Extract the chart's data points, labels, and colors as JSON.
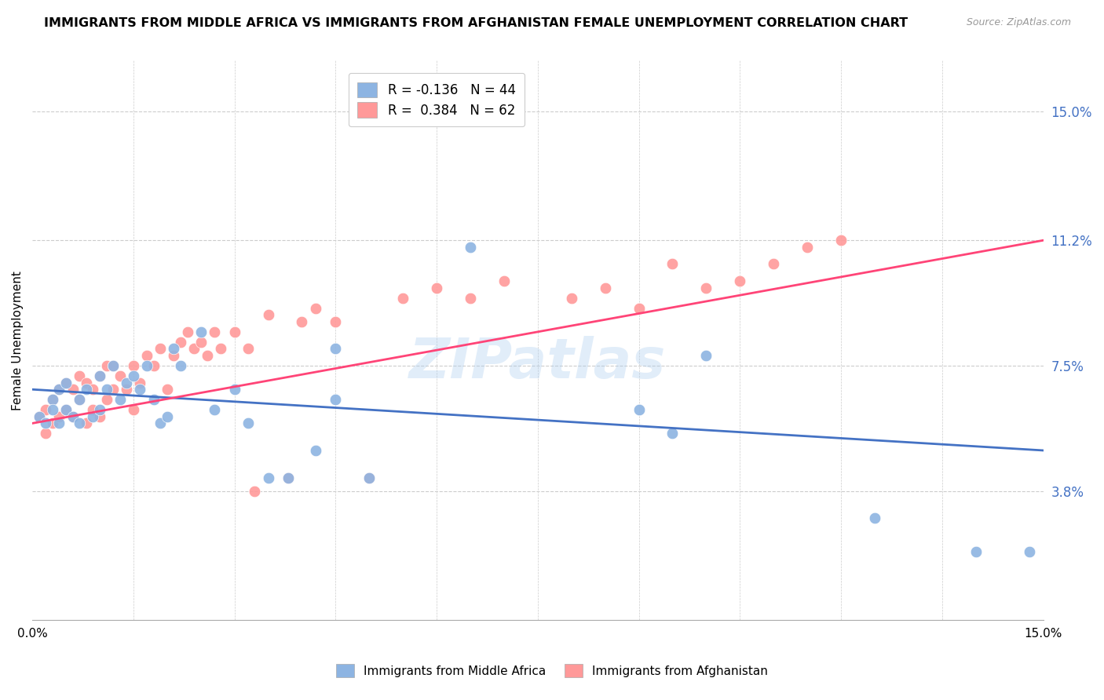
{
  "title": "IMMIGRANTS FROM MIDDLE AFRICA VS IMMIGRANTS FROM AFGHANISTAN FEMALE UNEMPLOYMENT CORRELATION CHART",
  "source": "Source: ZipAtlas.com",
  "ylabel": "Female Unemployment",
  "xlim": [
    0.0,
    0.15
  ],
  "ylim": [
    0.0,
    0.165
  ],
  "yticks": [
    0.038,
    0.075,
    0.112,
    0.15
  ],
  "ytick_labels": [
    "3.8%",
    "7.5%",
    "11.2%",
    "15.0%"
  ],
  "legend_r1": "R = -0.136",
  "legend_n1": "N = 44",
  "legend_r2": "R =  0.384",
  "legend_n2": "N = 62",
  "color_blue": "#8DB4E2",
  "color_pink": "#FF9999",
  "color_blue_line": "#4472C4",
  "color_pink_line": "#FF4477",
  "color_tick_right": "#4472C4",
  "watermark": "ZIPatlas",
  "blue_scatter_x": [
    0.001,
    0.002,
    0.003,
    0.003,
    0.004,
    0.004,
    0.005,
    0.005,
    0.006,
    0.007,
    0.007,
    0.008,
    0.009,
    0.01,
    0.01,
    0.011,
    0.012,
    0.013,
    0.014,
    0.015,
    0.016,
    0.017,
    0.018,
    0.019,
    0.02,
    0.021,
    0.022,
    0.025,
    0.027,
    0.03,
    0.032,
    0.035,
    0.038,
    0.042,
    0.045,
    0.05,
    0.045,
    0.065,
    0.09,
    0.095,
    0.1,
    0.125,
    0.14,
    0.148
  ],
  "blue_scatter_y": [
    0.06,
    0.058,
    0.065,
    0.062,
    0.068,
    0.058,
    0.062,
    0.07,
    0.06,
    0.065,
    0.058,
    0.068,
    0.06,
    0.072,
    0.062,
    0.068,
    0.075,
    0.065,
    0.07,
    0.072,
    0.068,
    0.075,
    0.065,
    0.058,
    0.06,
    0.08,
    0.075,
    0.085,
    0.062,
    0.068,
    0.058,
    0.042,
    0.042,
    0.05,
    0.065,
    0.042,
    0.08,
    0.11,
    0.062,
    0.055,
    0.078,
    0.03,
    0.02,
    0.02
  ],
  "pink_scatter_x": [
    0.001,
    0.002,
    0.002,
    0.003,
    0.003,
    0.004,
    0.004,
    0.005,
    0.005,
    0.006,
    0.006,
    0.007,
    0.007,
    0.008,
    0.008,
    0.009,
    0.009,
    0.01,
    0.01,
    0.011,
    0.011,
    0.012,
    0.012,
    0.013,
    0.014,
    0.015,
    0.015,
    0.016,
    0.017,
    0.018,
    0.019,
    0.02,
    0.021,
    0.022,
    0.023,
    0.024,
    0.025,
    0.026,
    0.027,
    0.028,
    0.03,
    0.032,
    0.033,
    0.035,
    0.038,
    0.04,
    0.042,
    0.045,
    0.05,
    0.055,
    0.06,
    0.065,
    0.07,
    0.08,
    0.085,
    0.09,
    0.095,
    0.1,
    0.105,
    0.11,
    0.115,
    0.12
  ],
  "pink_scatter_y": [
    0.06,
    0.055,
    0.062,
    0.058,
    0.065,
    0.06,
    0.068,
    0.062,
    0.07,
    0.06,
    0.068,
    0.065,
    0.072,
    0.058,
    0.07,
    0.062,
    0.068,
    0.06,
    0.072,
    0.065,
    0.075,
    0.068,
    0.075,
    0.072,
    0.068,
    0.062,
    0.075,
    0.07,
    0.078,
    0.075,
    0.08,
    0.068,
    0.078,
    0.082,
    0.085,
    0.08,
    0.082,
    0.078,
    0.085,
    0.08,
    0.085,
    0.08,
    0.038,
    0.09,
    0.042,
    0.088,
    0.092,
    0.088,
    0.042,
    0.095,
    0.098,
    0.095,
    0.1,
    0.095,
    0.098,
    0.092,
    0.105,
    0.098,
    0.1,
    0.105,
    0.11,
    0.112
  ],
  "blue_line_x": [
    0.0,
    0.15
  ],
  "blue_line_y_start": 0.068,
  "blue_line_y_end": 0.05,
  "pink_line_x": [
    0.0,
    0.15
  ],
  "pink_line_y_start": 0.058,
  "pink_line_y_end": 0.112
}
